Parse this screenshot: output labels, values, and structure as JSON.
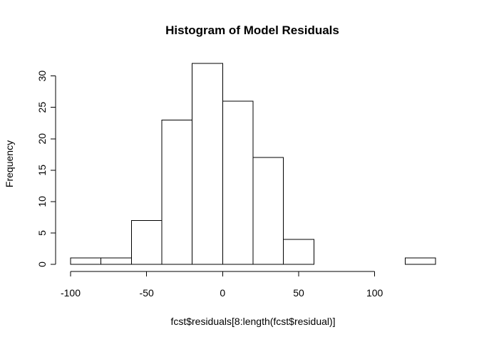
{
  "chart_data": {
    "type": "histogram",
    "title": "Histogram of Model Residuals",
    "xlabel": "fcst$residuals[8:length(fcst$residual)]",
    "ylabel": "Frequency",
    "bins": [
      {
        "start": -100,
        "end": -80,
        "count": 1
      },
      {
        "start": -80,
        "end": -60,
        "count": 1
      },
      {
        "start": -60,
        "end": -40,
        "count": 7
      },
      {
        "start": -40,
        "end": -20,
        "count": 23
      },
      {
        "start": -20,
        "end": 0,
        "count": 32
      },
      {
        "start": 0,
        "end": 20,
        "count": 26
      },
      {
        "start": 20,
        "end": 40,
        "count": 17
      },
      {
        "start": 40,
        "end": 60,
        "count": 4
      },
      {
        "start": 60,
        "end": 80,
        "count": 0
      },
      {
        "start": 80,
        "end": 100,
        "count": 0
      },
      {
        "start": 100,
        "end": 120,
        "count": 0
      },
      {
        "start": 120,
        "end": 140,
        "count": 1
      }
    ],
    "x_ticks": [
      -100,
      -50,
      0,
      50,
      100
    ],
    "x_tick_labels": [
      "-100",
      "-50",
      "0",
      "50",
      "100"
    ],
    "y_ticks": [
      0,
      5,
      10,
      15,
      20,
      25,
      30
    ],
    "y_tick_labels": [
      "0",
      "5",
      "10",
      "15",
      "20",
      "25",
      "30"
    ],
    "xlim": [
      -100,
      140
    ],
    "ylim": [
      0,
      32
    ],
    "grid": false,
    "bar_fill": "#ffffff",
    "bar_stroke": "#000000"
  }
}
